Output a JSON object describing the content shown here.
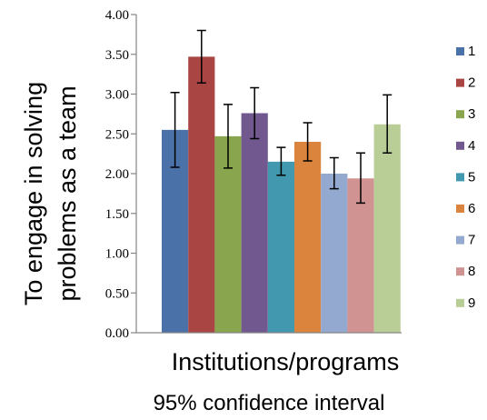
{
  "chart_data": {
    "type": "bar",
    "title": "",
    "xlabel": "Institutions/programs",
    "ylabel_lines": [
      "To engage in solving",
      "problems as a team"
    ],
    "caption": "95% confidence interval",
    "ylim": [
      0,
      4
    ],
    "yticks": [
      0,
      0.5,
      1,
      1.5,
      2,
      2.5,
      3,
      3.5,
      4
    ],
    "ytick_labels": [
      "0.00",
      "0.50",
      "1.00",
      "1.50",
      "2.00",
      "2.50",
      "3.00",
      "3.50",
      "4.00"
    ],
    "grid": false,
    "legend_position": "right",
    "series": [
      {
        "name": "1",
        "value": 2.55,
        "err_low": 2.08,
        "err_high": 3.02,
        "color": "#4a72a8"
      },
      {
        "name": "2",
        "value": 3.47,
        "err_low": 3.14,
        "err_high": 3.8,
        "color": "#a94543"
      },
      {
        "name": "3",
        "value": 2.47,
        "err_low": 2.07,
        "err_high": 2.87,
        "color": "#89a54e"
      },
      {
        "name": "4",
        "value": 2.76,
        "err_low": 2.44,
        "err_high": 3.08,
        "color": "#71588f"
      },
      {
        "name": "5",
        "value": 2.15,
        "err_low": 1.98,
        "err_high": 2.33,
        "color": "#4198af"
      },
      {
        "name": "6",
        "value": 2.4,
        "err_low": 2.16,
        "err_high": 2.64,
        "color": "#db843d"
      },
      {
        "name": "7",
        "value": 2.0,
        "err_low": 1.81,
        "err_high": 2.2,
        "color": "#93a9cf"
      },
      {
        "name": "8",
        "value": 1.94,
        "err_low": 1.63,
        "err_high": 2.26,
        "color": "#d19392"
      },
      {
        "name": "9",
        "value": 2.62,
        "err_low": 2.26,
        "err_high": 2.99,
        "color": "#b9cd96"
      }
    ]
  }
}
